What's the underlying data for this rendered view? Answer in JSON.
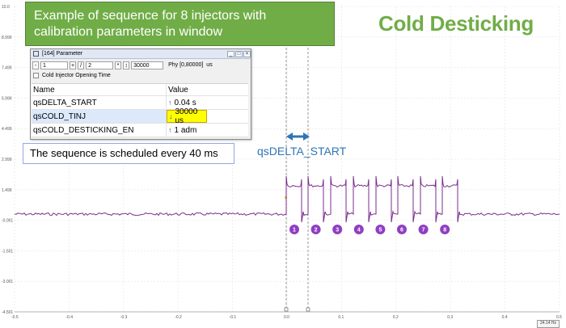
{
  "annotations": {
    "callout_title": "Example of sequence for 8 injectors with calibration parameters in window",
    "main_title": "Cold Desticking",
    "schedule_note": "The sequence is scheduled every 40 ms",
    "delta_label": "qsDELTA_START"
  },
  "param_window": {
    "title": "[164] Parameter",
    "toolbar": {
      "minus": "-",
      "field1": "1",
      "plus": "+",
      "slash": "/",
      "field2": "2",
      "star": "*",
      "sort": "↕",
      "value": "30000",
      "phys": "Phy [0,80000]",
      "unit": "us"
    },
    "description": "Cold Injector Opening Time",
    "columns": {
      "name": "Name",
      "value": "Value"
    },
    "rows": [
      {
        "name": "qsDELTA_START",
        "value": "0.04 s",
        "arrow": "↑"
      },
      {
        "name": "qsCOLD_TINJ",
        "value": "30000 us",
        "arrow": "↓"
      },
      {
        "name": "qsCOLD_DESTICKING_EN",
        "value": "1 adm",
        "arrow": "↑"
      }
    ]
  },
  "scope": {
    "y_ticks": [
      "10.0",
      "8.999",
      "7.499",
      "5.999",
      "4.499",
      "2.999",
      "1.499",
      "-0.001",
      "-1.501",
      "-3.001",
      "-4.501"
    ],
    "x_ticks": [
      "-0.5",
      "-0.4",
      "-0.3",
      "-0.2",
      "-0.1",
      "0.0",
      "0.1",
      "0.2",
      "0.3",
      "0.4",
      "0.5"
    ],
    "pulse_labels": [
      "1",
      "2",
      "3",
      "4",
      "5",
      "6",
      "7",
      "8"
    ],
    "footer": "24.14 Hz",
    "colors": {
      "trace": "#7a2d8e",
      "grid": "#e3e3e3",
      "marker": "#8f3fc1",
      "delta_arrow": "#2e75b6",
      "callout": "#70ad47"
    }
  }
}
